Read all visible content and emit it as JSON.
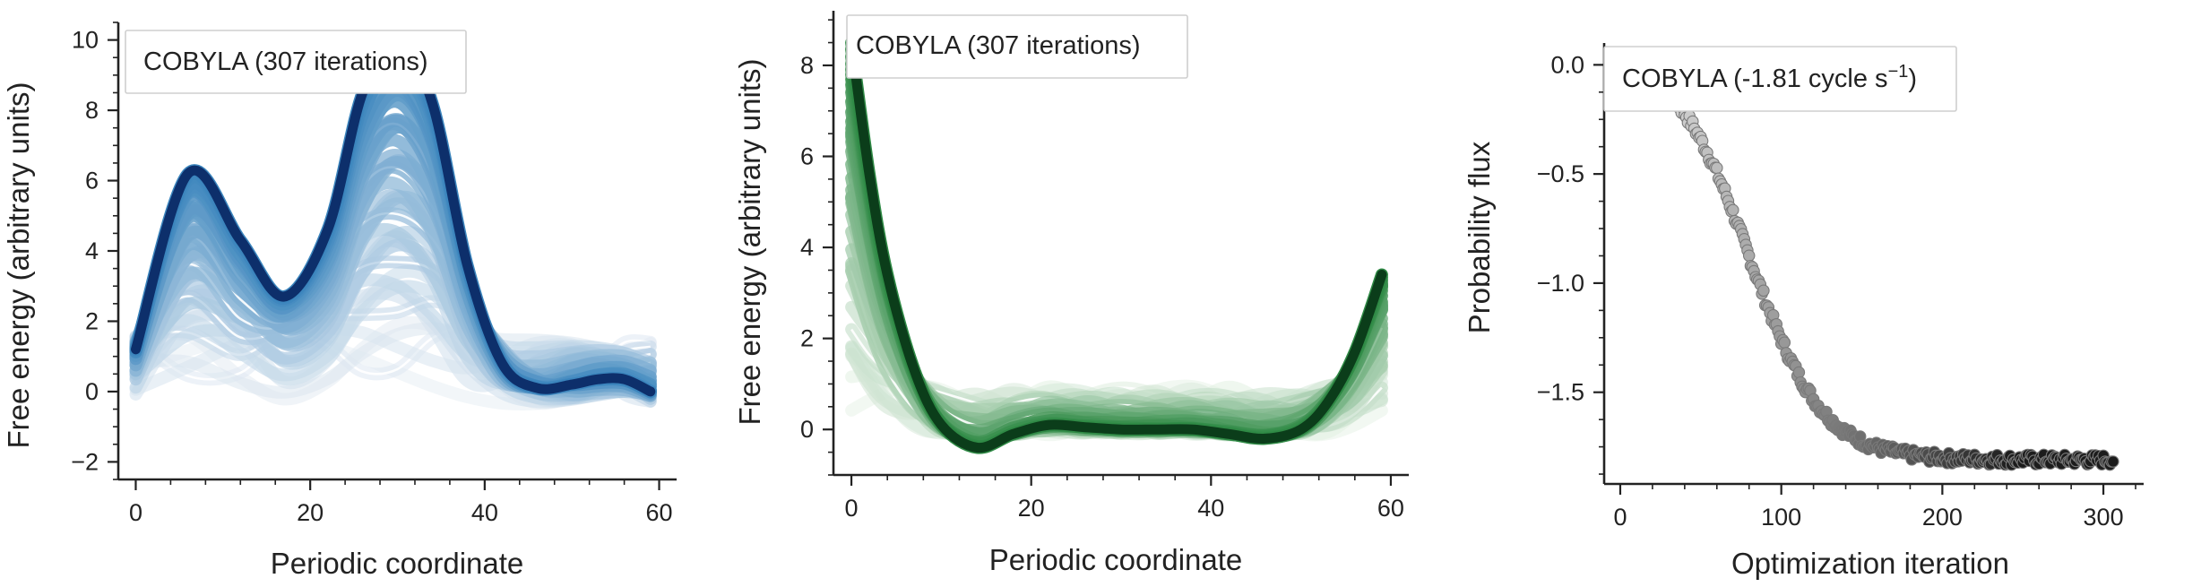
{
  "chart_data": [
    {
      "type": "line",
      "legend": "COBYLA (307 iterations)",
      "legend_location": "top-left",
      "xlabel": "Periodic coordinate",
      "ylabel": "Free energy (arbitrary units)",
      "xlim": [
        -2,
        62
      ],
      "ylim": [
        -2.5,
        10.5
      ],
      "xticks": [
        0,
        20,
        40,
        60
      ],
      "yticks": [
        -2,
        0,
        2,
        4,
        6,
        8,
        10
      ],
      "x": [
        0,
        6,
        12,
        17,
        22,
        26,
        30,
        34,
        38,
        42,
        46,
        50,
        53,
        56,
        59
      ],
      "final_values": [
        1.2,
        6.2,
        4.3,
        2.7,
        4.6,
        8.5,
        10.0,
        8.2,
        3.6,
        0.8,
        0.1,
        0.2,
        0.35,
        0.35,
        0.0
      ],
      "initial_values": [
        0,
        0,
        0,
        0,
        0,
        0,
        0,
        0,
        0,
        0,
        0,
        0,
        0,
        0,
        0
      ],
      "iterations_shown": 307,
      "color_map": "Blues",
      "final_color": "#0d2f6b",
      "grid": false
    },
    {
      "type": "line",
      "legend": "COBYLA (307 iterations)",
      "legend_location": "top-left",
      "xlabel": "Periodic coordinate",
      "ylabel": "Free energy (arbitrary units)",
      "xlim": [
        -2,
        62
      ],
      "ylim": [
        -1,
        9.2
      ],
      "xticks": [
        0,
        20,
        40,
        60
      ],
      "yticks": [
        0,
        2,
        4,
        6,
        8
      ],
      "x": [
        0,
        2,
        4,
        7,
        10,
        14,
        18,
        22,
        26,
        30,
        34,
        38,
        42,
        46,
        50,
        53,
        56,
        59
      ],
      "final_values": [
        8.5,
        5.6,
        3.4,
        1.3,
        0.1,
        -0.4,
        -0.1,
        0.1,
        0.05,
        0.0,
        0.0,
        0.0,
        -0.1,
        -0.2,
        0.0,
        0.6,
        1.7,
        3.4
      ],
      "initial_values": [
        0,
        0,
        0,
        0,
        0,
        0,
        0,
        0,
        0,
        0,
        0,
        0,
        0,
        0,
        0,
        0,
        0,
        0
      ],
      "iterations_shown": 307,
      "color_map": "Greens",
      "final_color": "#0b3d1a",
      "grid": false
    },
    {
      "type": "scatter",
      "legend": "COBYLA (-1.81 cycle s",
      "legend_superscript": "−1",
      "legend_close": ")",
      "legend_location": "top-left",
      "xlabel": "Optimization iteration",
      "ylabel": "Probability flux",
      "xlim": [
        -10,
        325
      ],
      "ylim": [
        -1.92,
        0.1
      ],
      "xticks": [
        0,
        100,
        200,
        300
      ],
      "yticks": [
        0.0,
        -0.5,
        -1.0,
        -1.5
      ],
      "ytick_labels": [
        "0.0",
        "−0.5",
        "−1.0",
        "−1.5"
      ],
      "n_points": 307,
      "x_start": 0,
      "x_end": 306,
      "final_value": -1.81,
      "transition_midpoint": 80,
      "transition_width": 23,
      "noise": 0.025,
      "color_map": "Greys",
      "grid": false
    }
  ]
}
